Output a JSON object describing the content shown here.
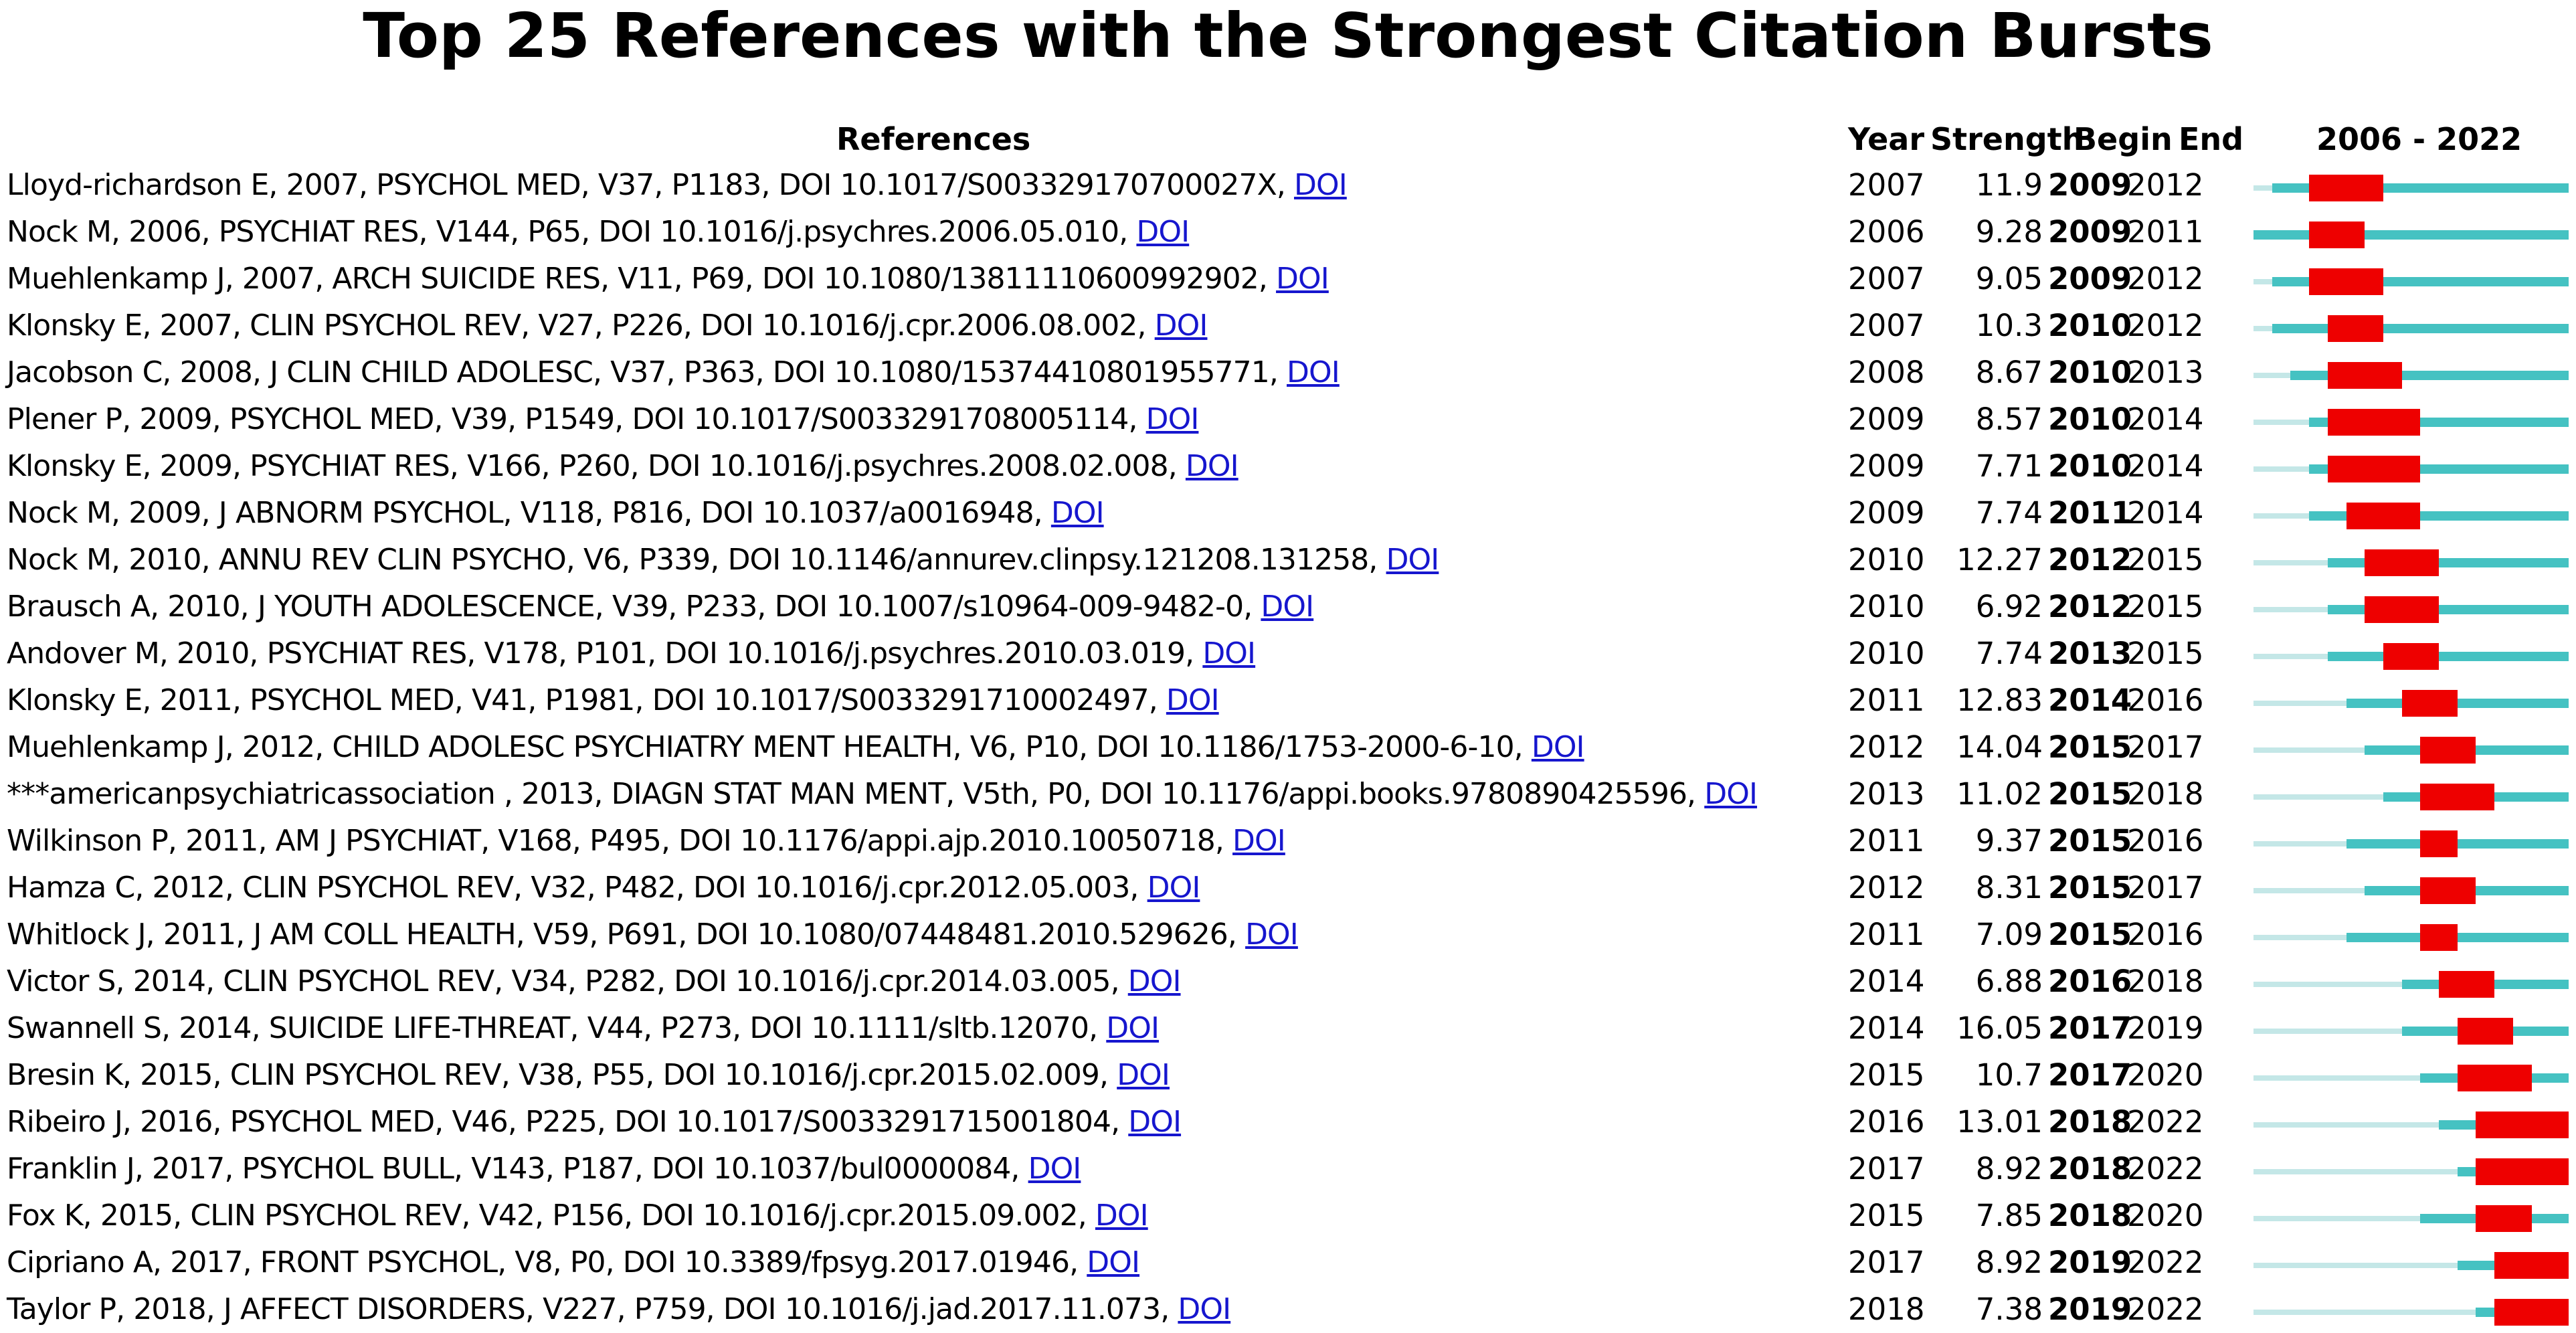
{
  "title": "Top 25 References with the Strongest Citation Bursts",
  "headers": {
    "references": "References",
    "year": "Year",
    "strength": "Strength",
    "begin": "Begin",
    "end": "End",
    "range": "2006 - 2022"
  },
  "link_label": "DOI",
  "colors": {
    "burst": "#ee0000",
    "active": "#45c2c2",
    "pre_publication": "#c4e7e7",
    "link": "#1616ce"
  },
  "chart_data": {
    "type": "table",
    "title": "Top 25 References with the Strongest Citation Bursts",
    "timeline_range": [
      2006,
      2022
    ],
    "columns": [
      "References",
      "Year",
      "Strength",
      "Begin",
      "End"
    ],
    "rows": [
      {
        "reference": "Lloyd-richardson E, 2007, PSYCHOL MED, V37, P1183, DOI 10.1017/S003329170700027X, ",
        "year": "2007",
        "strength": "11.9",
        "begin": "2009",
        "end": "2012"
      },
      {
        "reference": "Nock M, 2006, PSYCHIAT RES, V144, P65, DOI 10.1016/j.psychres.2006.05.010, ",
        "year": "2006",
        "strength": "9.28",
        "begin": "2009",
        "end": "2011"
      },
      {
        "reference": "Muehlenkamp J, 2007, ARCH SUICIDE RES, V11, P69, DOI 10.1080/13811110600992902, ",
        "year": "2007",
        "strength": "9.05",
        "begin": "2009",
        "end": "2012"
      },
      {
        "reference": "Klonsky E, 2007, CLIN PSYCHOL REV, V27, P226, DOI 10.1016/j.cpr.2006.08.002, ",
        "year": "2007",
        "strength": "10.3",
        "begin": "2010",
        "end": "2012"
      },
      {
        "reference": "Jacobson C, 2008, J CLIN CHILD ADOLESC, V37, P363, DOI 10.1080/15374410801955771, ",
        "year": "2008",
        "strength": "8.67",
        "begin": "2010",
        "end": "2013"
      },
      {
        "reference": "Plener P, 2009, PSYCHOL MED, V39, P1549, DOI 10.1017/S0033291708005114, ",
        "year": "2009",
        "strength": "8.57",
        "begin": "2010",
        "end": "2014"
      },
      {
        "reference": "Klonsky E, 2009, PSYCHIAT RES, V166, P260, DOI 10.1016/j.psychres.2008.02.008, ",
        "year": "2009",
        "strength": "7.71",
        "begin": "2010",
        "end": "2014"
      },
      {
        "reference": "Nock M, 2009, J ABNORM PSYCHOL, V118, P816, DOI 10.1037/a0016948, ",
        "year": "2009",
        "strength": "7.74",
        "begin": "2011",
        "end": "2014"
      },
      {
        "reference": "Nock M, 2010, ANNU REV CLIN PSYCHO, V6, P339, DOI 10.1146/annurev.clinpsy.121208.131258, ",
        "year": "2010",
        "strength": "12.27",
        "begin": "2012",
        "end": "2015"
      },
      {
        "reference": "Brausch A, 2010, J YOUTH ADOLESCENCE, V39, P233, DOI 10.1007/s10964-009-9482-0, ",
        "year": "2010",
        "strength": "6.92",
        "begin": "2012",
        "end": "2015"
      },
      {
        "reference": "Andover M, 2010, PSYCHIAT RES, V178, P101, DOI 10.1016/j.psychres.2010.03.019, ",
        "year": "2010",
        "strength": "7.74",
        "begin": "2013",
        "end": "2015"
      },
      {
        "reference": "Klonsky E, 2011, PSYCHOL MED, V41, P1981, DOI 10.1017/S0033291710002497, ",
        "year": "2011",
        "strength": "12.83",
        "begin": "2014",
        "end": "2016"
      },
      {
        "reference": "Muehlenkamp J, 2012, CHILD ADOLESC PSYCHIATRY MENT HEALTH, V6, P10, DOI 10.1186/1753-2000-6-10, ",
        "year": "2012",
        "strength": "14.04",
        "begin": "2015",
        "end": "2017"
      },
      {
        "reference": "***americanpsychiatricassociation , 2013, DIAGN STAT MAN MENT, V5th, P0, DOI 10.1176/appi.books.9780890425596, ",
        "year": "2013",
        "strength": "11.02",
        "begin": "2015",
        "end": "2018"
      },
      {
        "reference": "Wilkinson P, 2011, AM J PSYCHIAT, V168, P495, DOI 10.1176/appi.ajp.2010.10050718, ",
        "year": "2011",
        "strength": "9.37",
        "begin": "2015",
        "end": "2016"
      },
      {
        "reference": "Hamza C, 2012, CLIN PSYCHOL REV, V32, P482, DOI 10.1016/j.cpr.2012.05.003, ",
        "year": "2012",
        "strength": "8.31",
        "begin": "2015",
        "end": "2017"
      },
      {
        "reference": "Whitlock J, 2011, J AM COLL HEALTH, V59, P691, DOI 10.1080/07448481.2010.529626, ",
        "year": "2011",
        "strength": "7.09",
        "begin": "2015",
        "end": "2016"
      },
      {
        "reference": "Victor S, 2014, CLIN PSYCHOL REV, V34, P282, DOI 10.1016/j.cpr.2014.03.005, ",
        "year": "2014",
        "strength": "6.88",
        "begin": "2016",
        "end": "2018"
      },
      {
        "reference": "Swannell S, 2014, SUICIDE LIFE-THREAT, V44, P273, DOI 10.1111/sltb.12070, ",
        "year": "2014",
        "strength": "16.05",
        "begin": "2017",
        "end": "2019"
      },
      {
        "reference": "Bresin K, 2015, CLIN PSYCHOL REV, V38, P55, DOI 10.1016/j.cpr.2015.02.009, ",
        "year": "2015",
        "strength": "10.7",
        "begin": "2017",
        "end": "2020"
      },
      {
        "reference": "Ribeiro J, 2016, PSYCHOL MED, V46, P225, DOI 10.1017/S0033291715001804, ",
        "year": "2016",
        "strength": "13.01",
        "begin": "2018",
        "end": "2022"
      },
      {
        "reference": "Franklin J, 2017, PSYCHOL BULL, V143, P187, DOI 10.1037/bul0000084, ",
        "year": "2017",
        "strength": "8.92",
        "begin": "2018",
        "end": "2022"
      },
      {
        "reference": "Fox K, 2015, CLIN PSYCHOL REV, V42, P156, DOI 10.1016/j.cpr.2015.09.002, ",
        "year": "2015",
        "strength": "7.85",
        "begin": "2018",
        "end": "2020"
      },
      {
        "reference": "Cipriano A, 2017, FRONT PSYCHOL, V8, P0, DOI 10.3389/fpsyg.2017.01946, ",
        "year": "2017",
        "strength": "8.92",
        "begin": "2019",
        "end": "2022"
      },
      {
        "reference": "Taylor P, 2018, J AFFECT DISORDERS, V227, P759, DOI 10.1016/j.jad.2017.11.073, ",
        "year": "2018",
        "strength": "7.38",
        "begin": "2019",
        "end": "2022"
      }
    ]
  }
}
